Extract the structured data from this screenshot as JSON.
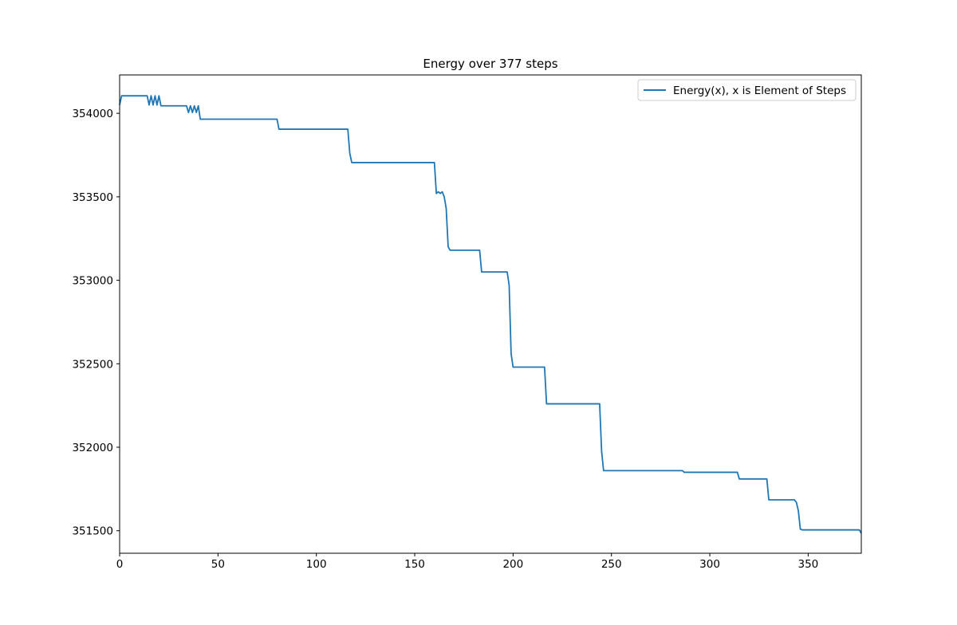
{
  "chart_data": {
    "type": "line",
    "title": "Energy over  377 steps",
    "xlabel": "",
    "ylabel": "",
    "xlim": [
      0,
      377
    ],
    "ylim": [
      351365,
      354230
    ],
    "xticks": [
      0,
      50,
      100,
      150,
      200,
      250,
      300,
      350
    ],
    "yticks": [
      351500,
      352000,
      352500,
      353000,
      353500,
      354000
    ],
    "grid": false,
    "legend_position": "upper right",
    "series": [
      {
        "name": "Energy(x), x is Element of Steps",
        "color": "#1f77b4",
        "x": [
          0,
          1,
          14,
          15,
          16,
          17,
          18,
          19,
          20,
          21,
          34,
          35,
          36,
          37,
          38,
          39,
          40,
          41,
          80,
          81,
          116,
          117,
          118,
          160,
          161,
          162,
          163,
          164,
          165,
          166,
          167,
          168,
          183,
          184,
          197,
          198,
          199,
          200,
          201,
          216,
          217,
          244,
          245,
          246,
          286,
          287,
          314,
          315,
          329,
          330,
          343,
          344,
          345,
          346,
          347,
          376,
          377
        ],
        "y": [
          354050,
          354105,
          354105,
          354050,
          354105,
          354050,
          354105,
          354050,
          354105,
          354045,
          354045,
          354005,
          354045,
          354005,
          354045,
          354005,
          354045,
          353965,
          353965,
          353905,
          353905,
          353760,
          353705,
          353705,
          353520,
          353530,
          353520,
          353530,
          353500,
          353430,
          353200,
          353180,
          353180,
          353050,
          353050,
          352970,
          352560,
          352480,
          352480,
          352480,
          352260,
          352260,
          351975,
          351860,
          351860,
          351850,
          351850,
          351810,
          351810,
          351685,
          351685,
          351670,
          351620,
          351510,
          351505,
          351505,
          351485
        ]
      }
    ]
  }
}
